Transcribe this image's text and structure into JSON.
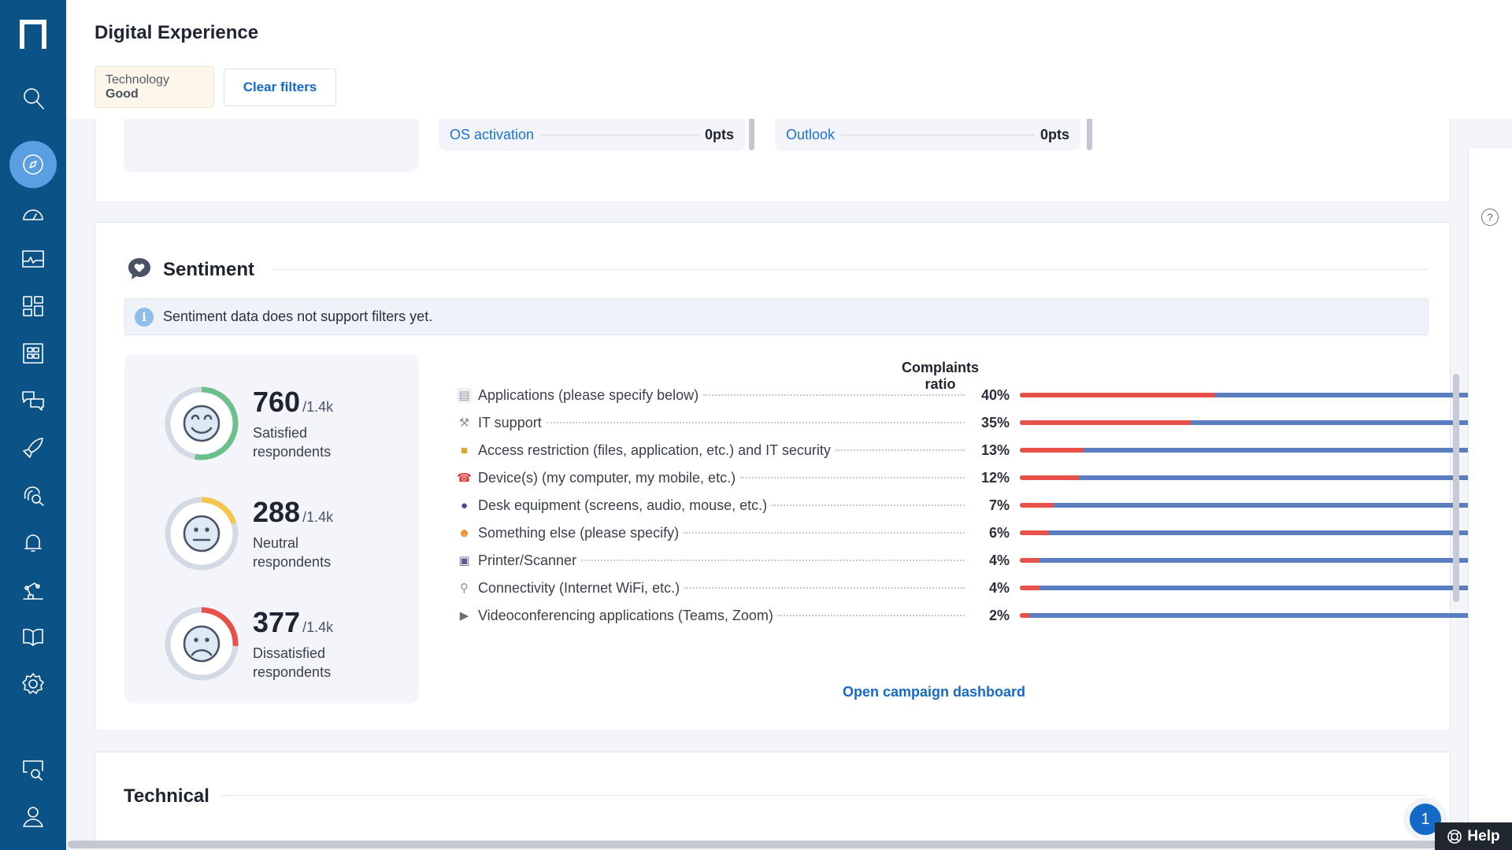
{
  "page": {
    "title": "Digital Experience"
  },
  "filters": {
    "chip_key": "Technology",
    "chip_value": "Good",
    "clear_label": "Clear filters"
  },
  "top_kpis": [
    {
      "label": "OS activation",
      "value": "0pts"
    },
    {
      "label": "Outlook",
      "value": "0pts"
    }
  ],
  "sentiment": {
    "title": "Sentiment",
    "info": "Sentiment data does not support filters yet.",
    "stats": [
      {
        "value": "760",
        "total": "/1.4k",
        "label_1": "Satisfied",
        "label_2": "respondents",
        "fraction": 0.53,
        "color": "#6cc08b",
        "face": "smile"
      },
      {
        "value": "288",
        "total": "/1.4k",
        "label_1": "Neutral",
        "label_2": "respondents",
        "fraction": 0.2,
        "color": "#f5c54c",
        "face": "neutral"
      },
      {
        "value": "377",
        "total": "/1.4k",
        "label_1": "Dissatisfied",
        "label_2": "respondents",
        "fraction": 0.26,
        "color": "#e8514a",
        "face": "sad"
      }
    ],
    "complaints_title": "Complaints ratio",
    "complaints": [
      {
        "label": "Applications (please specify below)",
        "pct": "40%",
        "value": 40,
        "icon": "document-icon"
      },
      {
        "label": "IT support",
        "pct": "35%",
        "value": 35,
        "icon": "wrench-icon"
      },
      {
        "label": "Access restriction (files, application, etc.) and IT security",
        "pct": "13%",
        "value": 13,
        "icon": "lock-icon"
      },
      {
        "label": "Device(s) (my computer, my mobile, etc.)",
        "pct": "12%",
        "value": 12,
        "icon": "phone-icon"
      },
      {
        "label": "Desk equipment (screens, audio, mouse, etc.)",
        "pct": "7%",
        "value": 7,
        "icon": "joystick-icon"
      },
      {
        "label": "Something else (please specify)",
        "pct": "6%",
        "value": 6,
        "icon": "person-raising-hand-icon"
      },
      {
        "label": "Printer/Scanner",
        "pct": "4%",
        "value": 4,
        "icon": "printer-icon"
      },
      {
        "label": "Connectivity (Internet WiFi, etc.)",
        "pct": "4%",
        "value": 4,
        "icon": "satellite-antenna-icon"
      },
      {
        "label": "Videoconferencing applications (Teams, Zoom)",
        "pct": "2%",
        "value": 2,
        "icon": "movie-camera-icon"
      }
    ],
    "open_dashboard": "Open campaign dashboard"
  },
  "technical": {
    "title": "Technical"
  },
  "help": {
    "label": "Help",
    "badge": "1",
    "question": "?"
  },
  "info_glyph": "i"
}
